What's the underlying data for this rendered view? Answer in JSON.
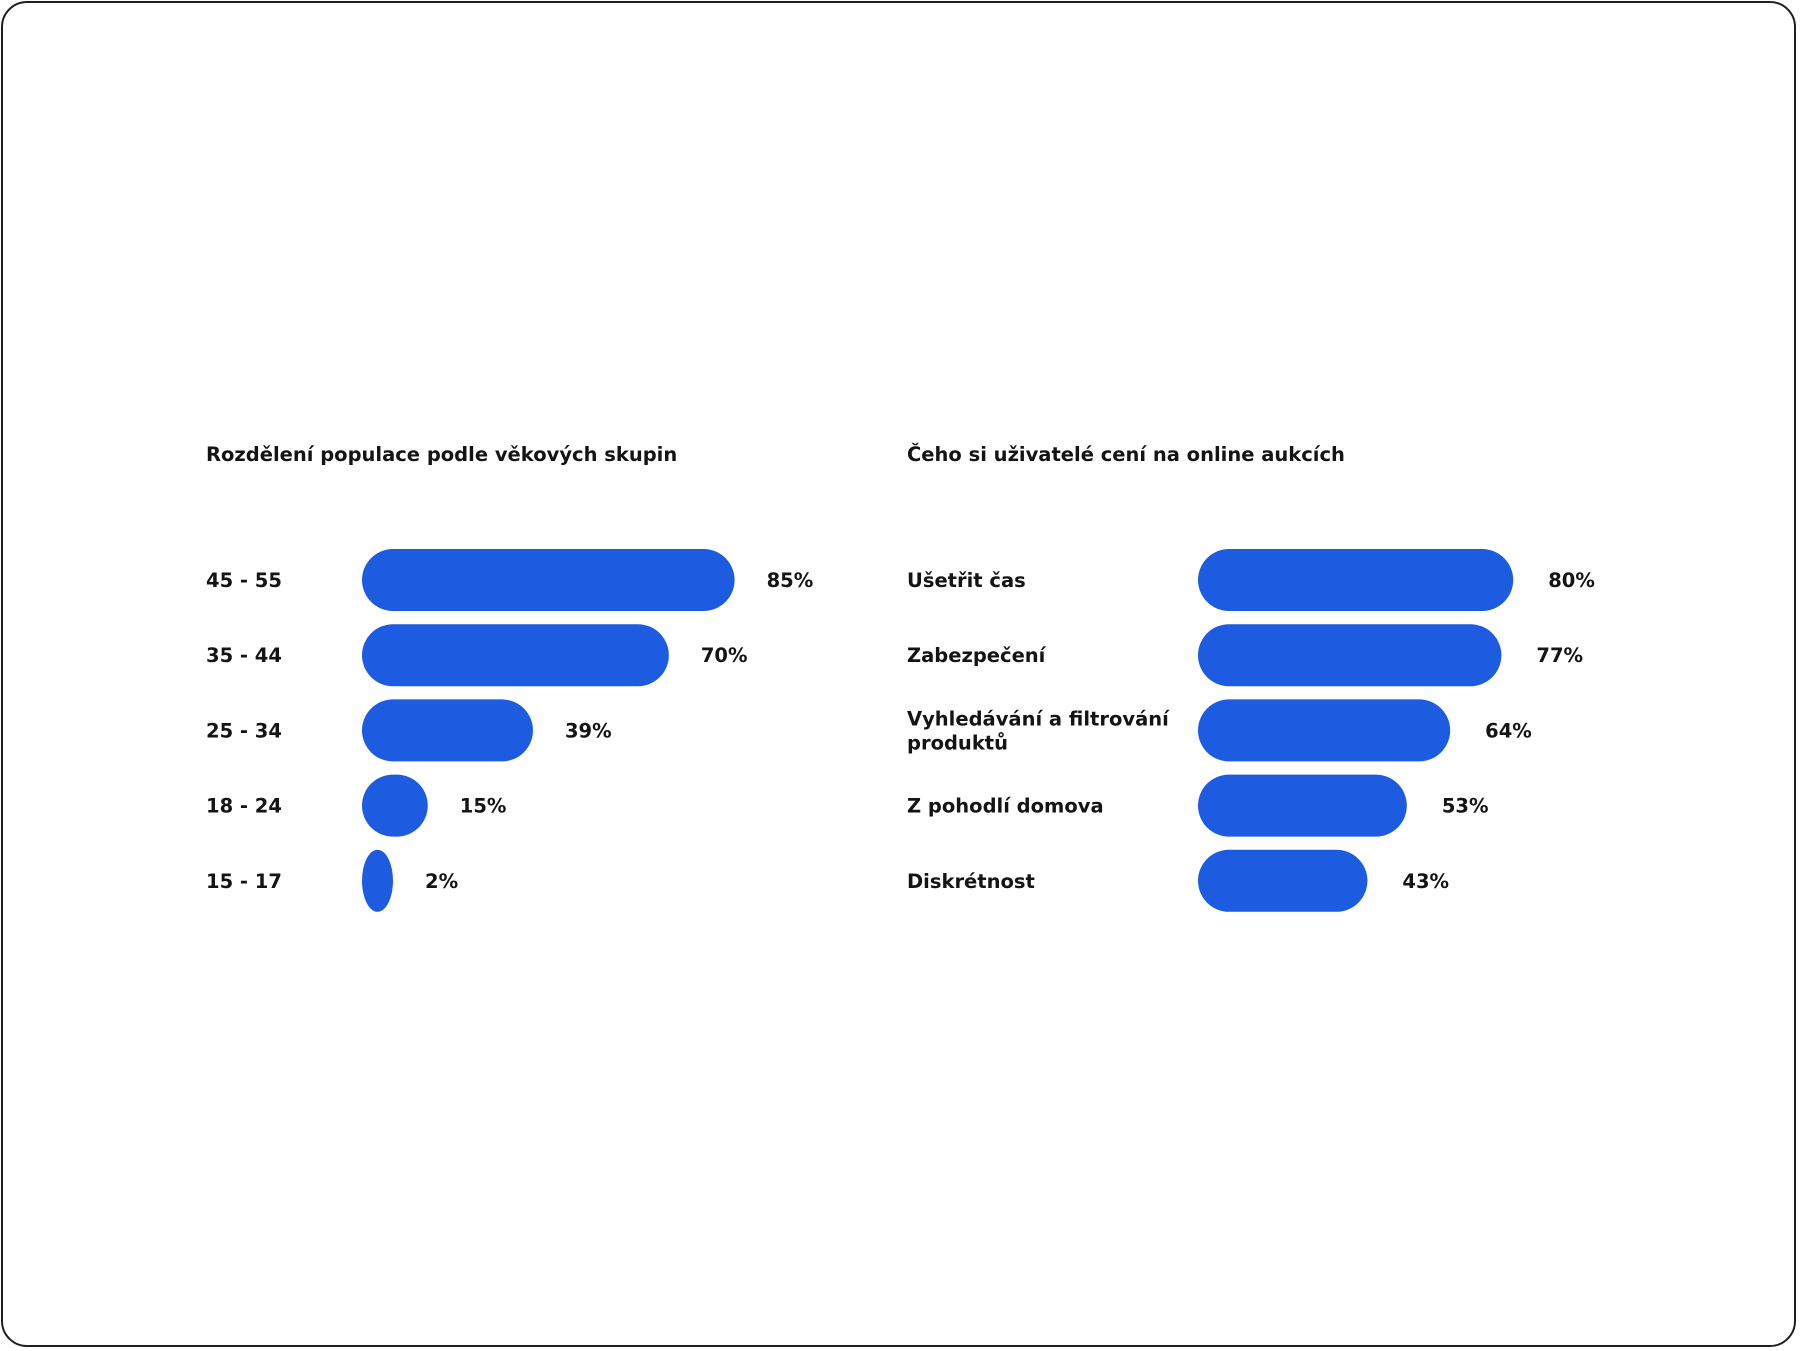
{
  "colors": {
    "bar": "#1D5BE0",
    "text": "#141414",
    "border": "#1f1f1f",
    "background": "#ffffff"
  },
  "chart_data": [
    {
      "type": "bar",
      "orientation": "horizontal",
      "title": "Rozdělení populace podle věkových skupin",
      "categories": [
        "45 - 55",
        "35 - 44",
        "25 - 34",
        "18 - 24",
        "15 - 17"
      ],
      "values": [
        85,
        70,
        39,
        15,
        2
      ],
      "value_labels": [
        "85%",
        "70%",
        "39%",
        "15%",
        "2%"
      ],
      "unit": "%",
      "xlim": [
        0,
        100
      ],
      "grid": false,
      "legend": "none"
    },
    {
      "type": "bar",
      "orientation": "horizontal",
      "title": "Čeho si uživatelé cení na online aukcích",
      "categories": [
        [
          "Ušetřit čas"
        ],
        [
          "Zabezpečení"
        ],
        [
          "Vyhledávání a filtrování",
          "produktů"
        ],
        [
          "Z pohodlí domova"
        ],
        [
          "Diskrétnost"
        ]
      ],
      "values": [
        80,
        77,
        64,
        53,
        43
      ],
      "value_labels": [
        "80%",
        "77%",
        "64%",
        "53%",
        "43%"
      ],
      "unit": "%",
      "xlim": [
        0,
        100
      ],
      "grid": false,
      "legend": "none"
    }
  ]
}
